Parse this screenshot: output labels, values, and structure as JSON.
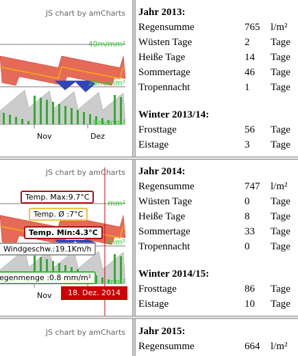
{
  "sections": [
    {
      "chart": {
        "credit": "JS chart by amCharts",
        "axis_labels": [
          "40m/mm²",
          "20m/mm²",
          "0m/mm²"
        ],
        "months": [
          "Nov",
          "Dez"
        ]
      },
      "stats": {
        "year_title": "Jahr 2013:",
        "year_rows": [
          [
            "Regensumme",
            765,
            "l/m²"
          ],
          [
            "Wüsten Tage",
            2,
            "Tage"
          ],
          [
            "Heiße Tage",
            14,
            "Tage"
          ],
          [
            "Sommertage",
            46,
            "Tage"
          ],
          [
            "Tropennacht",
            1,
            "Tage"
          ]
        ],
        "winter_title": "Winter 2013/14:",
        "winter_rows": [
          [
            "Frosttage",
            56,
            "Tage"
          ],
          [
            "Eistage",
            3,
            "Tage"
          ]
        ]
      }
    },
    {
      "chart": {
        "credit": "JS chart by amCharts",
        "axis_labels": [
          "mm²",
          "mm²",
          "mm²"
        ],
        "months": [
          "Nov"
        ],
        "tooltips": [
          "Temp. Max:9.7°C",
          "Temp. Ø :7°C",
          "Temp. Min:4.3°C",
          "Windgeschw.:19.1Km/h",
          "egenmenge :0.8 mm/m²"
        ],
        "date_label": "18. Dez. 2014"
      },
      "stats": {
        "year_title": "Jahr 2014:",
        "year_rows": [
          [
            "Regensumme",
            747,
            "l/m²"
          ],
          [
            "Wüsten Tage",
            0,
            "Tage"
          ],
          [
            "Heiße Tage",
            8,
            "Tage"
          ],
          [
            "Sommertage",
            33,
            "Tage"
          ],
          [
            "Tropennacht",
            0,
            "Tage"
          ]
        ],
        "winter_title": "Winter 2014/15:",
        "winter_rows": [
          [
            "Frosttage",
            86,
            "Tage"
          ],
          [
            "Eistage",
            10,
            "Tage"
          ]
        ]
      }
    },
    {
      "chart": {
        "credit": "JS chart by amCharts"
      },
      "stats": {
        "year_title": "Jahr 2015:",
        "year_rows": [
          [
            "Regensumme",
            664,
            "l/m²"
          ]
        ]
      }
    }
  ]
}
